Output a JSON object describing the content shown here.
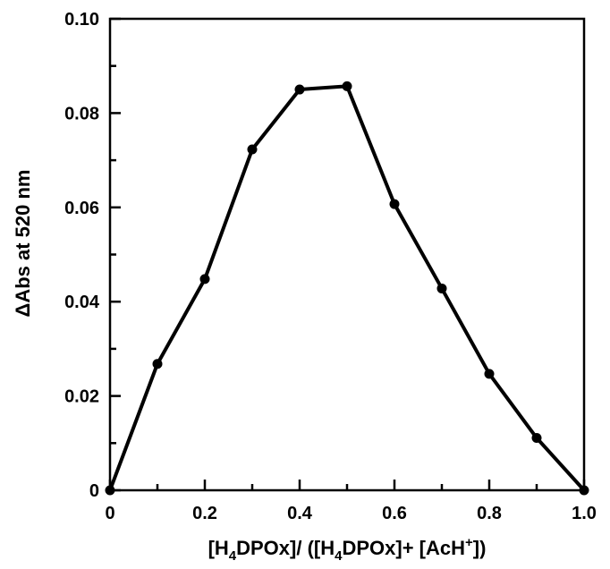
{
  "chart_data": {
    "type": "line",
    "title": "",
    "xlabel_parts": [
      "[H",
      "4",
      "DPOx]/ ([H",
      "4",
      "DPOx]+ [AcH",
      "+",
      "])"
    ],
    "ylabel": "ΔAbs at 520 nm",
    "xlim": [
      0,
      1.0
    ],
    "ylim": [
      0,
      0.1
    ],
    "x_ticks": [
      "0",
      "0.2",
      "0.4",
      "0.6",
      "0.8",
      "1.0"
    ],
    "y_ticks": [
      "0",
      "0.02",
      "0.04",
      "0.06",
      "0.08",
      "0.10"
    ],
    "grid": false,
    "legend": "none",
    "series": [
      {
        "x": [
          0,
          0.1,
          0.2,
          0.3,
          0.4,
          0.5,
          0.6,
          0.7,
          0.8,
          0.9,
          1.0
        ],
        "y": [
          0,
          0.0268,
          0.0448,
          0.0723,
          0.085,
          0.0857,
          0.0607,
          0.0428,
          0.0247,
          0.0111,
          0
        ],
        "color": "#000000"
      }
    ]
  }
}
